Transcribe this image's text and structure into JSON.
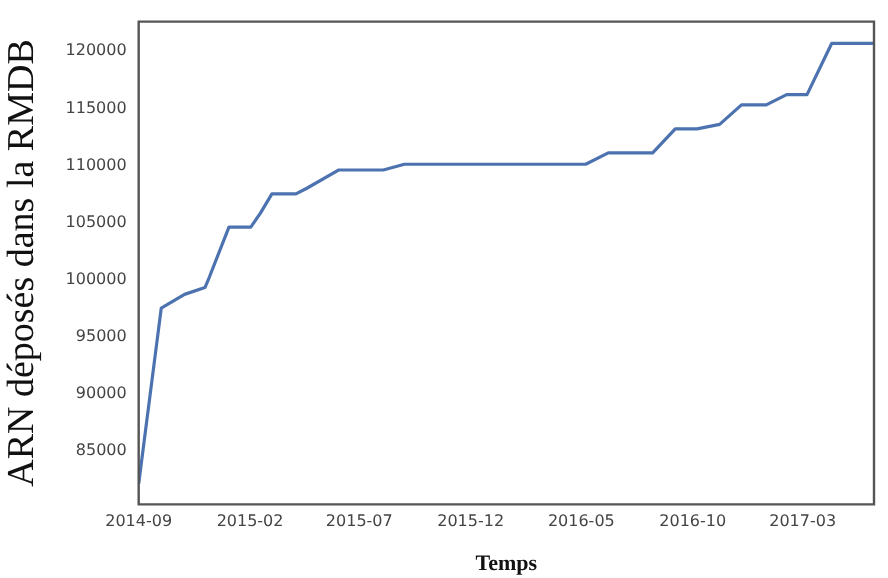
{
  "chart_data": {
    "type": "line",
    "xlabel": "Temps",
    "ylabel": "ARN déposés dans la RMDB",
    "x": [
      "2014-09-01",
      "2014-10-02",
      "2014-11-03",
      "2014-12-01",
      "2014-12-07",
      "2015-01-03",
      "2015-02-02",
      "2015-02-15",
      "2015-03-03",
      "2015-04-05",
      "2015-04-20",
      "2015-06-03",
      "2015-08-03",
      "2015-09-01",
      "2016-05-07",
      "2016-06-07",
      "2016-08-07",
      "2016-09-07",
      "2016-10-07",
      "2016-11-07",
      "2016-12-07",
      "2017-01-10",
      "2017-02-07",
      "2017-03-07",
      "2017-04-10",
      "2017-06-07"
    ],
    "series": [
      {
        "color": "#4c72b0",
        "values": [
          82100,
          97500,
          98700,
          99300,
          100200,
          104600,
          104600,
          105800,
          107500,
          107500,
          108000,
          109600,
          109600,
          110100,
          110100,
          111100,
          111100,
          113200,
          113200,
          113600,
          115300,
          115300,
          116200,
          116200,
          120700,
          120700
        ]
      }
    ],
    "xlim": [
      "2014-09-01",
      "2017-06-07"
    ],
    "xticks": [
      "2014-09",
      "2015-02",
      "2015-07",
      "2015-12",
      "2016-05",
      "2016-10",
      "2017-03"
    ],
    "ylim": [
      80300,
      122600
    ],
    "yticks": [
      85000,
      90000,
      95000,
      100000,
      105000,
      110000,
      115000,
      120000
    ],
    "grid": false,
    "legend": false,
    "marker": "none",
    "line_style": "solid"
  }
}
